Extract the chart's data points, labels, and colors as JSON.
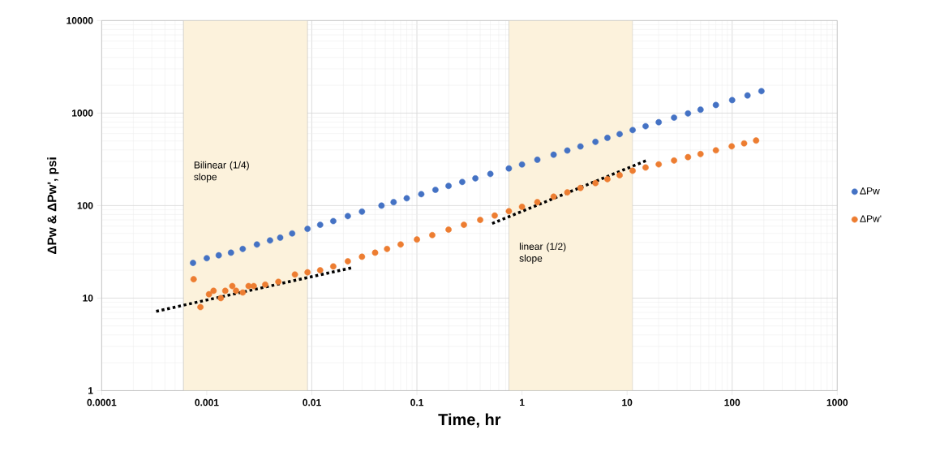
{
  "chart_data": {
    "type": "scatter",
    "xlabel": "Time, hr",
    "ylabel": "ΔPw & ΔPw', psi",
    "log": "xy",
    "grid": true,
    "legend": "right",
    "marker": "circle",
    "xlim": [
      0.0001,
      1000
    ],
    "ylim": [
      1,
      10000
    ],
    "xticks": [
      0.0001,
      0.001,
      0.01,
      0.1,
      1,
      10,
      100,
      1000
    ],
    "yticks": [
      1,
      10,
      100,
      1000,
      10000
    ],
    "bands": [
      {
        "axis": "x",
        "from": 0.0006,
        "to": 0.0091,
        "label": "Bilinear (1/4) slope",
        "color": "#fcf2dc"
      },
      {
        "axis": "x",
        "from": 0.75,
        "to": 11.3,
        "label": "linear (1/2) slope",
        "color": "#fcf2dc"
      }
    ],
    "series": [
      {
        "name": "ΔPw",
        "color": "#4472c4",
        "x": [
          0.00074,
          0.001,
          0.0013,
          0.0017,
          0.0022,
          0.003,
          0.004,
          0.005,
          0.0065,
          0.0091,
          0.012,
          0.016,
          0.022,
          0.03,
          0.046,
          0.06,
          0.08,
          0.11,
          0.15,
          0.2,
          0.27,
          0.36,
          0.5,
          0.75,
          1,
          1.4,
          2,
          2.7,
          3.6,
          5,
          6.5,
          8.5,
          11.3,
          15,
          20,
          28,
          38,
          50,
          70,
          100,
          140,
          190
        ],
        "values": [
          24,
          27,
          29,
          31,
          34,
          38,
          42,
          45,
          50,
          56,
          62,
          68,
          77,
          86,
          100,
          109,
          120,
          133,
          148,
          163,
          180,
          197,
          220,
          252,
          278,
          313,
          355,
          394,
          436,
          489,
          540,
          592,
          655,
          721,
          796,
          893,
          991,
          1089,
          1222,
          1380,
          1549,
          1725
        ]
      },
      {
        "name": "ΔPw'",
        "color": "#ed7d31",
        "x": [
          0.00075,
          0.00087,
          0.00105,
          0.00116,
          0.00136,
          0.0015,
          0.00175,
          0.0019,
          0.0022,
          0.0025,
          0.0028,
          0.0036,
          0.0048,
          0.0069,
          0.0091,
          0.012,
          0.016,
          0.022,
          0.03,
          0.04,
          0.052,
          0.07,
          0.1,
          0.14,
          0.2,
          0.28,
          0.4,
          0.55,
          0.75,
          1,
          1.4,
          2,
          2.7,
          3.6,
          5,
          6.5,
          8.5,
          11.3,
          15,
          20,
          28,
          38,
          50,
          70,
          99,
          130,
          169
        ],
        "values": [
          16,
          8,
          11,
          12,
          10,
          12,
          13.5,
          12,
          11.5,
          13.5,
          13.5,
          14,
          15,
          18,
          19,
          20,
          22,
          25,
          28,
          31,
          34,
          38,
          43,
          48,
          55,
          62,
          70,
          78,
          87,
          97,
          109,
          125,
          139,
          155,
          175,
          193,
          213,
          238,
          258,
          279,
          307,
          334,
          361,
          396,
          437,
          470,
          505
        ]
      },
      {
        "type": "line",
        "color": "#000000",
        "line_style": "dotted",
        "marker": "none",
        "x": [
          0.00033,
          0.025
        ],
        "values": [
          7.2,
          21.5
        ]
      },
      {
        "type": "line",
        "color": "#000000",
        "line_style": "dotted",
        "marker": "none",
        "x": [
          0.52,
          15.6
        ],
        "values": [
          64,
          310
        ]
      }
    ]
  }
}
